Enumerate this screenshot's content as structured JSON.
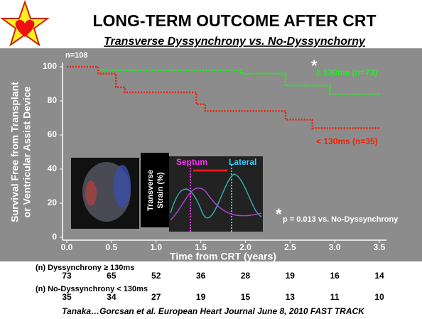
{
  "header": {
    "title": "LONG-TERM OUTCOME AFTER CRT",
    "subtitle": "Transverse Dyssynchrony vs. No-Dyssynchorny"
  },
  "chart_data": {
    "type": "step",
    "y_label": [
      "Survival Free from Transplant",
      "or Ventricular Assist Device"
    ],
    "x_label": "Time from CRT (years)",
    "xlim": [
      0,
      3.5
    ],
    "ylim": [
      0,
      100
    ],
    "xticks": [
      {
        "value": 0,
        "label": "0.0"
      },
      0.5,
      {
        "value": 1,
        "label": "1.0"
      },
      1.5,
      {
        "value": 2,
        "label": "2.0"
      },
      2.5,
      {
        "value": 3,
        "label": "3.0"
      },
      3.5
    ],
    "yticks": [
      0,
      20,
      40,
      60,
      80,
      100
    ],
    "series": [
      {
        "name": "≥ 130ms (n=73)",
        "color": "#22ee22",
        "x": [
          0,
          0.35,
          1.95,
          2.45,
          2.95,
          3.5
        ],
        "values": [
          100,
          98,
          96,
          89,
          84,
          84
        ]
      },
      {
        "name": "< 130ms (n=35)",
        "color": "#ee2200",
        "x": [
          0,
          0.35,
          0.55,
          0.65,
          1.45,
          1.55,
          2.45,
          2.75,
          3.5
        ],
        "values": [
          100,
          96,
          88,
          85,
          78,
          74,
          69,
          64,
          64
        ]
      }
    ],
    "annotations": [
      "n=108",
      "*",
      "*",
      "p = 0.013 vs. No-Dyssynchrony"
    ],
    "at_risk": [
      {
        "label": "(n) Dyssynchrony ≥ 130ms",
        "values": [
          73,
          65,
          52,
          36,
          28,
          19,
          16,
          14
        ]
      },
      {
        "label": "(n) No-Dyssynchrony < 130ms",
        "values": [
          35,
          34,
          27,
          19,
          15,
          13,
          11,
          10
        ]
      }
    ]
  },
  "inset": {
    "strain_label": [
      "Transverse",
      "Strain (%)"
    ],
    "septum": "Septum",
    "lateral": "Lateral"
  },
  "footer": {
    "citation": "Tanaka…Gorcsan et al. European Heart Journal June 8, 2010 FAST TRACK"
  }
}
